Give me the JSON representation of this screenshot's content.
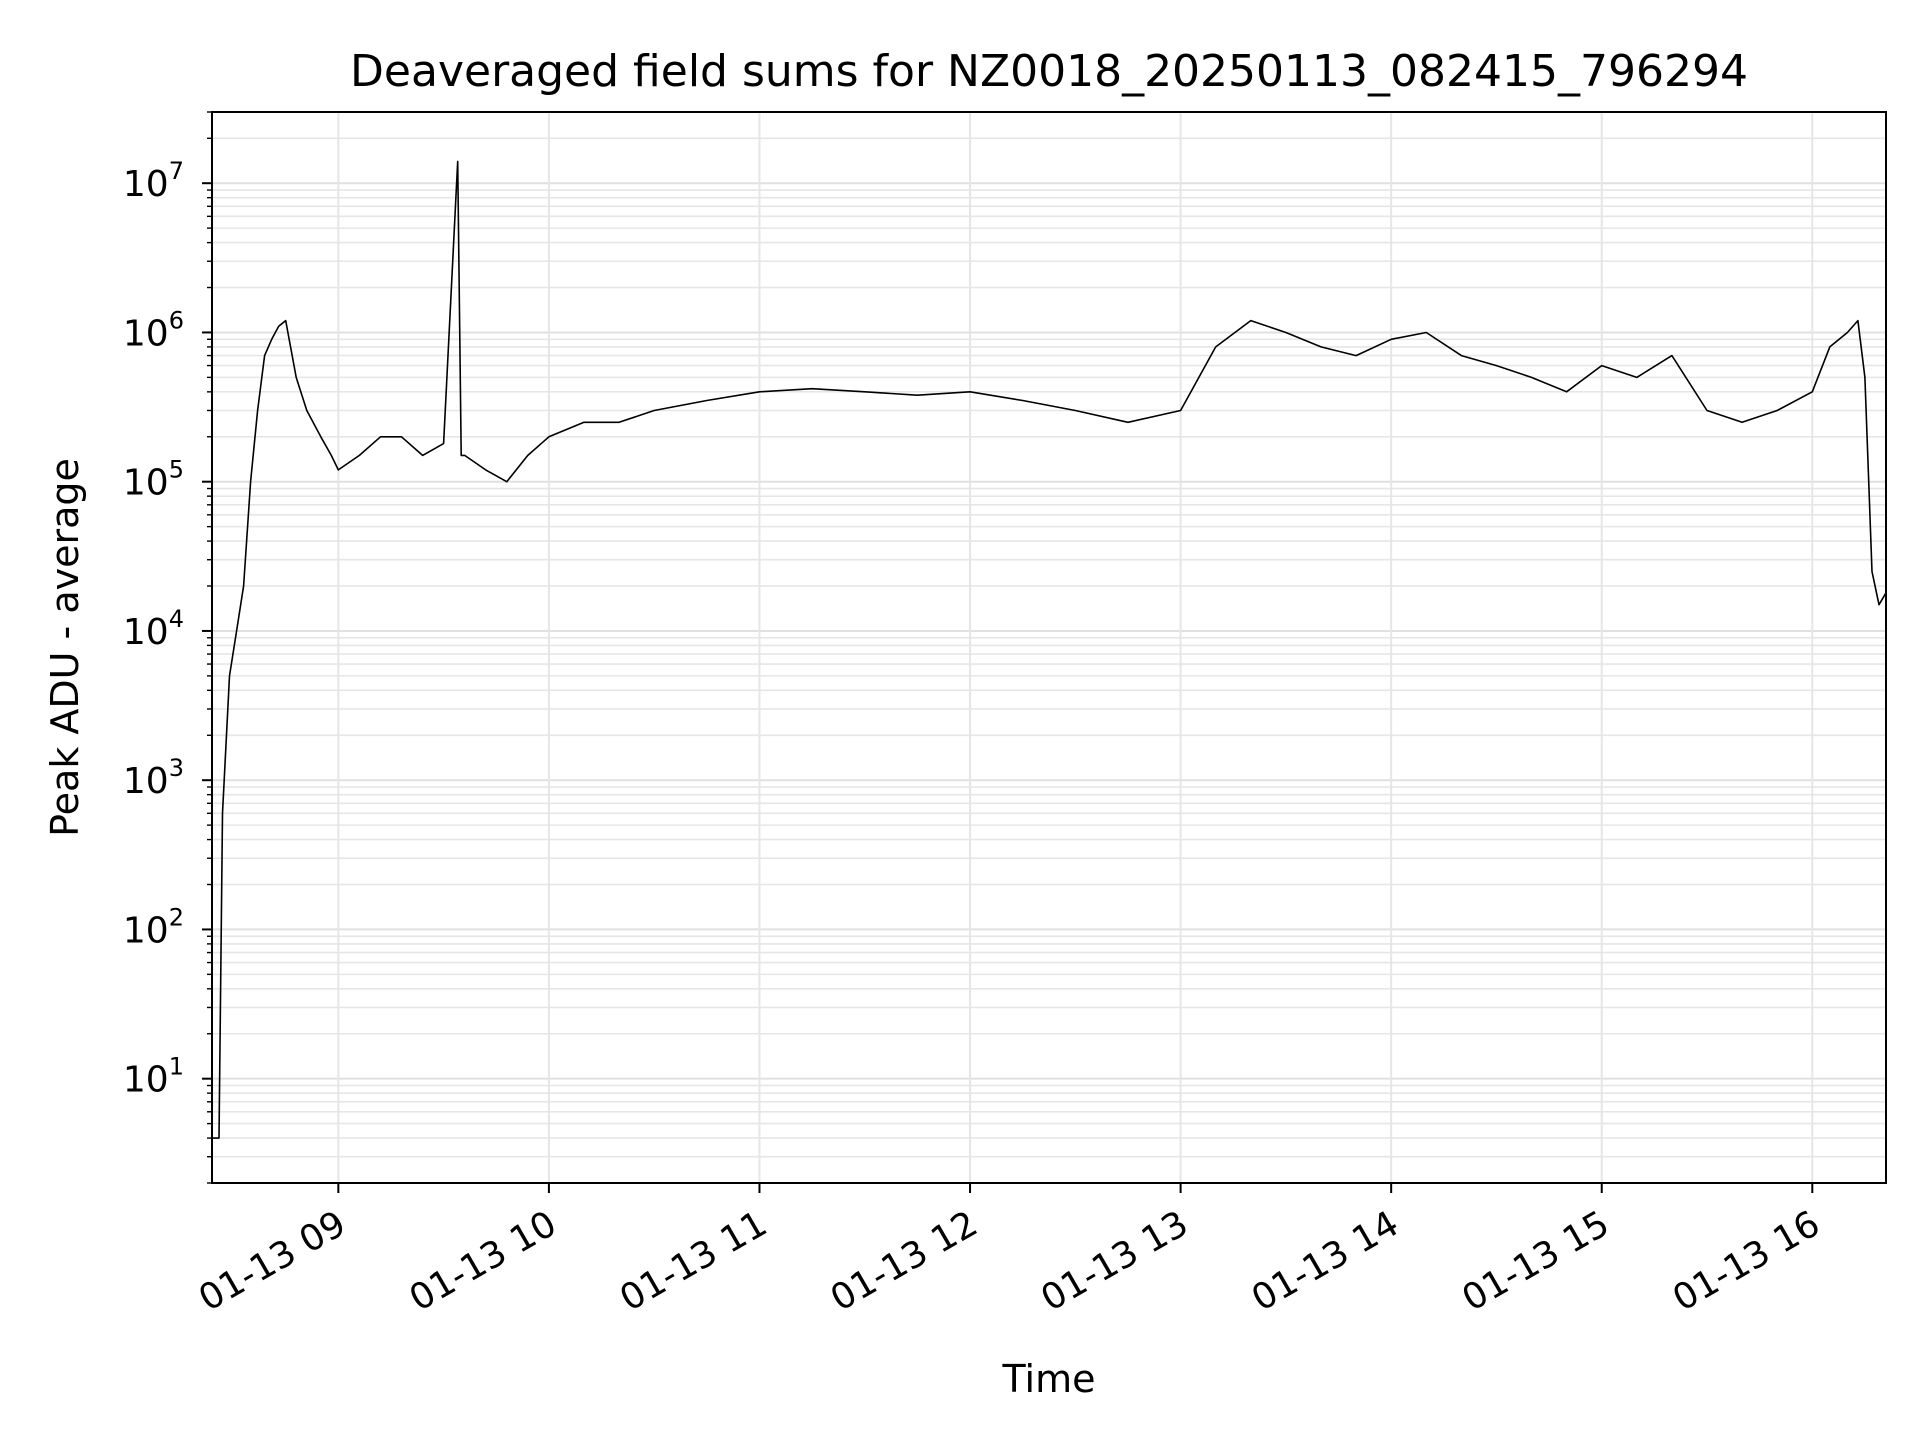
{
  "chart_data": {
    "type": "line",
    "title": "Deaveraged field sums for NZ0018_20250113_082415_796294",
    "xlabel": "Time",
    "ylabel": "Peak ADU - average",
    "yscale": "log",
    "grid": true,
    "xlim": [
      "01-13 08:24",
      "01-13 16:21"
    ],
    "ylim": [
      2,
      30000000
    ],
    "x_ticks": [
      "01-13 09",
      "01-13 10",
      "01-13 11",
      "01-13 12",
      "01-13 13",
      "01-13 14",
      "01-13 15",
      "01-13 16"
    ],
    "y_ticks": [
      {
        "base": "10",
        "exp": "1"
      },
      {
        "base": "10",
        "exp": "2"
      },
      {
        "base": "10",
        "exp": "3"
      },
      {
        "base": "10",
        "exp": "4"
      },
      {
        "base": "10",
        "exp": "5"
      },
      {
        "base": "10",
        "exp": "6"
      },
      {
        "base": "10",
        "exp": "7"
      }
    ],
    "series_color": "#000000",
    "series": [
      {
        "x": [
          "01-13 08:24",
          "01-13 08:26",
          "01-13 08:27",
          "01-13 08:29",
          "01-13 08:31",
          "01-13 08:33",
          "01-13 08:35",
          "01-13 08:37",
          "01-13 08:39",
          "01-13 08:41",
          "01-13 08:43",
          "01-13 08:45",
          "01-13 08:48",
          "01-13 08:51",
          "01-13 08:55",
          "01-13 08:58",
          "01-13 09:00",
          "01-13 09:06",
          "01-13 09:12",
          "01-13 09:18",
          "01-13 09:24",
          "01-13 09:30",
          "01-13 09:34",
          "01-13 09:35",
          "01-13 09:36",
          "01-13 09:42",
          "01-13 09:48",
          "01-13 09:54",
          "01-13 10:00",
          "01-13 10:10",
          "01-13 10:20",
          "01-13 10:30",
          "01-13 10:45",
          "01-13 11:00",
          "01-13 11:15",
          "01-13 11:30",
          "01-13 11:45",
          "01-13 12:00",
          "01-13 12:15",
          "01-13 12:30",
          "01-13 12:45",
          "01-13 13:00",
          "01-13 13:10",
          "01-13 13:20",
          "01-13 13:30",
          "01-13 13:40",
          "01-13 13:50",
          "01-13 14:00",
          "01-13 14:10",
          "01-13 14:20",
          "01-13 14:30",
          "01-13 14:40",
          "01-13 14:50",
          "01-13 15:00",
          "01-13 15:10",
          "01-13 15:20",
          "01-13 15:30",
          "01-13 15:40",
          "01-13 15:50",
          "01-13 16:00",
          "01-13 16:05",
          "01-13 16:10",
          "01-13 16:13",
          "01-13 16:15",
          "01-13 16:17",
          "01-13 16:19",
          "01-13 16:21"
        ],
        "y": [
          4,
          4,
          600,
          5000,
          10000,
          20000,
          100000,
          300000,
          700000,
          900000,
          1100000,
          1200000,
          500000,
          300000,
          200000,
          150000,
          120000,
          150000,
          200000,
          200000,
          150000,
          180000,
          14000000,
          150000,
          150000,
          120000,
          100000,
          150000,
          200000,
          250000,
          250000,
          300000,
          350000,
          400000,
          420000,
          400000,
          380000,
          400000,
          350000,
          300000,
          250000,
          300000,
          800000,
          1200000,
          1000000,
          800000,
          700000,
          900000,
          1000000,
          700000,
          600000,
          500000,
          400000,
          600000,
          500000,
          700000,
          300000,
          250000,
          300000,
          400000,
          800000,
          1000000,
          1200000,
          500000,
          25000,
          15000,
          18000
        ]
      }
    ]
  }
}
